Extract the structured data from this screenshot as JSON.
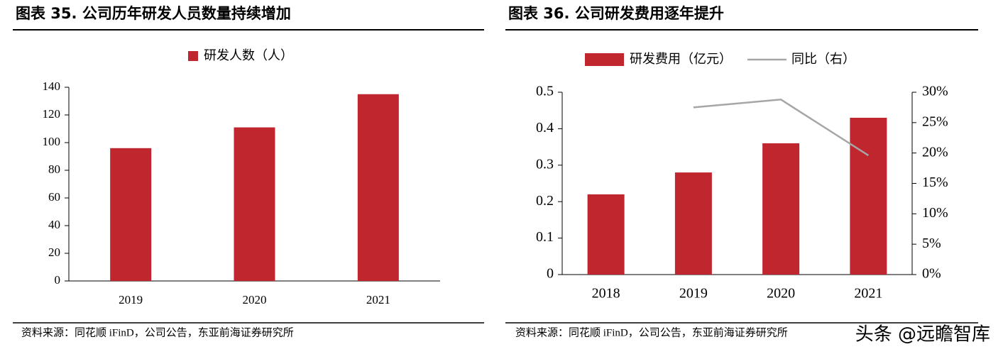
{
  "chart_data": [
    {
      "type": "bar",
      "title": "图表 35. 公司历年研发人员数量持续增加",
      "categories": [
        "2019",
        "2020",
        "2021"
      ],
      "series": [
        {
          "name": "研发人数（人）",
          "color": "#c0262d",
          "values": [
            96,
            111,
            135
          ]
        }
      ],
      "ylim": [
        0,
        140
      ],
      "yticks": [
        0,
        20,
        40,
        60,
        80,
        100,
        120,
        140
      ],
      "source": "资料来源：同花顺 iFinD，公司公告，东亚前海证券研究所"
    },
    {
      "type": "bar-line",
      "title": "图表 36. 公司研发费用逐年提升",
      "categories": [
        "2018",
        "2019",
        "2020",
        "2021"
      ],
      "series": [
        {
          "name": "研发费用（亿元）",
          "color": "#c0262d",
          "values": [
            0.22,
            0.28,
            0.36,
            0.43
          ]
        },
        {
          "name": "同比（右）",
          "color": "#a6a6a6",
          "axis": "y2",
          "values": [
            null,
            27.5,
            28.8,
            19.6
          ]
        }
      ],
      "ylim": [
        0,
        0.5
      ],
      "yticks": [
        0,
        0.1,
        0.2,
        0.3,
        0.4,
        0.5
      ],
      "y2lim": [
        0,
        30
      ],
      "y2ticks": [
        {
          "value": 0,
          "label": "0%"
        },
        {
          "value": 5,
          "label": "5%"
        },
        {
          "value": 10,
          "label": "10%"
        },
        {
          "value": 15,
          "label": "15%"
        },
        {
          "value": 20,
          "label": "20%"
        },
        {
          "value": 25,
          "label": "25%"
        },
        {
          "value": 30,
          "label": "30%"
        }
      ],
      "source": "资料来源：同花顺 iFinD，公司公告，东亚前海证券研究所"
    }
  ],
  "watermark": "头条 @远瞻智库"
}
